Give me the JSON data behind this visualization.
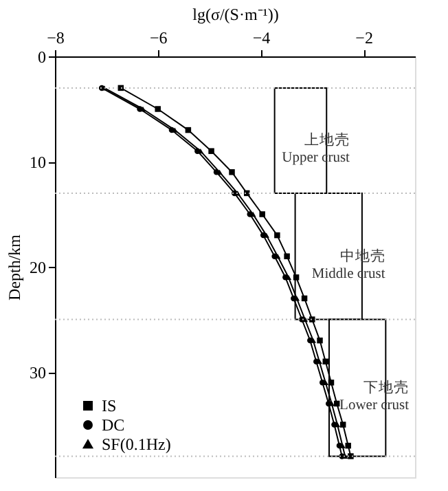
{
  "chart_data": {
    "type": "line",
    "xlabel": "lg(σ/(S·m⁻¹))",
    "ylabel": "Depth/km",
    "xlim": [
      -8,
      -1
    ],
    "xticks": [
      -8,
      -6,
      -4,
      -2
    ],
    "ylim": [
      40,
      0
    ],
    "yticks": [
      0,
      10,
      20,
      30
    ],
    "grid": false,
    "legend": "bottom left",
    "line_style": "solid",
    "series": [
      {
        "name": "IS",
        "color": "#000000",
        "marker": "square",
        "x": [
          -6.72,
          -6.0,
          -5.41,
          -4.96,
          -4.56,
          -4.27,
          -3.97,
          -3.68,
          -3.49,
          -3.31,
          -3.15,
          -3.0,
          -2.85,
          -2.74,
          -2.63,
          -2.52,
          -2.4,
          -2.3,
          -2.25
        ],
        "values": [
          3,
          5,
          7,
          9,
          11,
          13,
          15,
          17,
          19,
          21,
          23,
          25,
          27,
          29,
          31,
          33,
          35,
          37,
          38
        ]
      },
      {
        "name": "DC",
        "color": "#000000",
        "marker": "circle",
        "x": [
          -7.09,
          -6.35,
          -5.73,
          -5.23,
          -4.86,
          -4.51,
          -4.21,
          -3.95,
          -3.73,
          -3.52,
          -3.36,
          -3.2,
          -3.04,
          -2.92,
          -2.8,
          -2.68,
          -2.57,
          -2.47,
          -2.42
        ],
        "values": [
          3,
          5,
          7,
          9,
          11,
          13,
          15,
          17,
          19,
          21,
          23,
          25,
          27,
          29,
          31,
          33,
          35,
          37,
          38
        ]
      },
      {
        "name": "SF(0.1Hz)",
        "color": "#000000",
        "marker": "triangle",
        "x": [
          -7.04,
          -6.29,
          -5.67,
          -5.17,
          -4.8,
          -4.45,
          -4.15,
          -3.89,
          -3.67,
          -3.46,
          -3.3,
          -3.14,
          -2.98,
          -2.86,
          -2.74,
          -2.62,
          -2.51,
          -2.41,
          -2.36
        ],
        "values": [
          3,
          5,
          7,
          9,
          11,
          13,
          15,
          17,
          19,
          21,
          23,
          25,
          27,
          29,
          31,
          33,
          35,
          37,
          38
        ]
      }
    ],
    "ref_lines": [
      {
        "axis": "y",
        "value": 3,
        "color": "#bbbbbb",
        "line_style": "dotted"
      },
      {
        "axis": "y",
        "value": 13,
        "color": "#bbbbbb",
        "line_style": "dotted"
      },
      {
        "axis": "y",
        "value": 25,
        "color": "#bbbbbb",
        "line_style": "dotted"
      },
      {
        "axis": "y",
        "value": 38,
        "color": "#bbbbbb",
        "line_style": "dotted"
      }
    ],
    "bands": [
      {
        "axis": "x",
        "from": -3.73,
        "to": -2.72,
        "label": "上地壳\nUpper crust"
      },
      {
        "axis": "x",
        "from": -3.33,
        "to": -2.03,
        "label": "中地壳\nMiddle crust"
      },
      {
        "axis": "x",
        "from": -2.67,
        "to": -1.57,
        "label": "下地壳\nLower crust"
      }
    ]
  }
}
